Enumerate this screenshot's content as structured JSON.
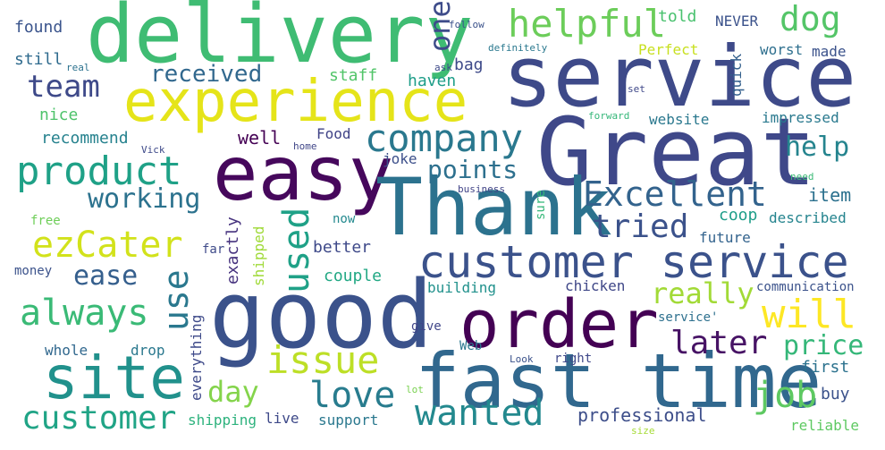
{
  "words": [
    {
      "text": "delivery",
      "color": "#3fbc73"
    },
    {
      "text": "service",
      "color": "#3e4a89"
    },
    {
      "text": "Great",
      "color": "#3f4889"
    },
    {
      "text": "experience",
      "color": "#e5e419"
    },
    {
      "text": "easy",
      "color": "#46085c"
    },
    {
      "text": "Thank",
      "color": "#2c728e"
    },
    {
      "text": "good",
      "color": "#3b528b"
    },
    {
      "text": "order",
      "color": "#440154"
    },
    {
      "text": "fast time",
      "color": "#31688e"
    },
    {
      "text": "site",
      "color": "#21918c"
    },
    {
      "text": "customer service",
      "color": "#3b528b"
    },
    {
      "text": "helpful",
      "color": "#6ccd5a"
    },
    {
      "text": "product",
      "color": "#1fa187"
    },
    {
      "text": "company",
      "color": "#2a788e"
    },
    {
      "text": "Excellent",
      "color": "#33638d"
    },
    {
      "text": "ezCater",
      "color": "#d2e21b"
    },
    {
      "text": "team",
      "color": "#3e4989"
    },
    {
      "text": "received",
      "color": "#31688e"
    },
    {
      "text": "working",
      "color": "#2c728e"
    },
    {
      "text": "always",
      "color": "#3aba76"
    },
    {
      "text": "use",
      "color": "#2a788e"
    },
    {
      "text": "used",
      "color": "#1fa187"
    },
    {
      "text": "issue",
      "color": "#bddf26"
    },
    {
      "text": "love",
      "color": "#287c8e"
    },
    {
      "text": "wanted",
      "color": "#23898e"
    },
    {
      "text": "customer",
      "color": "#20a486"
    },
    {
      "text": "will",
      "color": "#fde725"
    },
    {
      "text": "later",
      "color": "#471365"
    },
    {
      "text": "price",
      "color": "#35b779"
    },
    {
      "text": "job",
      "color": "#5ec962"
    },
    {
      "text": "day",
      "color": "#84d44b"
    },
    {
      "text": "tried",
      "color": "#3b528b"
    },
    {
      "text": "points",
      "color": "#2d708e"
    },
    {
      "text": "help",
      "color": "#25848e"
    },
    {
      "text": "really",
      "color": "#a2da37"
    },
    {
      "text": "ease",
      "color": "#355f8d"
    },
    {
      "text": "one",
      "color": "#3e4c8a"
    },
    {
      "text": "dog",
      "color": "#54c568"
    },
    {
      "text": "professional",
      "color": "#3d4e8a"
    },
    {
      "text": "found",
      "color": "#3a548c"
    },
    {
      "text": "still",
      "color": "#2f6b8e"
    },
    {
      "text": "nice",
      "color": "#4ec36b"
    },
    {
      "text": "recommend",
      "color": "#26828e"
    },
    {
      "text": "staff",
      "color": "#52c569"
    },
    {
      "text": "haven",
      "color": "#1f9e89"
    },
    {
      "text": "bag",
      "color": "#3e4a89"
    },
    {
      "text": "told",
      "color": "#48c16e"
    },
    {
      "text": "NEVER",
      "color": "#3b528b"
    },
    {
      "text": "Perfect",
      "color": "#c8e020"
    },
    {
      "text": "worst",
      "color": "#2e6f8e"
    },
    {
      "text": "made",
      "color": "#3b528b"
    },
    {
      "text": "quick",
      "color": "#34608d"
    },
    {
      "text": "website",
      "color": "#2a788e"
    },
    {
      "text": "impressed",
      "color": "#29798e"
    },
    {
      "text": "well",
      "color": "#440154"
    },
    {
      "text": "Food",
      "color": "#404387"
    },
    {
      "text": "joke",
      "color": "#3c4f8a"
    },
    {
      "text": "sure",
      "color": "#35b779"
    },
    {
      "text": "item",
      "color": "#2c718e"
    },
    {
      "text": "coop",
      "color": "#1f9e89"
    },
    {
      "text": "described",
      "color": "#25848e"
    },
    {
      "text": "exactly",
      "color": "#46327e"
    },
    {
      "text": "shipped",
      "color": "#a0da39"
    },
    {
      "text": "better",
      "color": "#3e4989"
    },
    {
      "text": "future",
      "color": "#33638d"
    },
    {
      "text": "couple",
      "color": "#22a884"
    },
    {
      "text": "building",
      "color": "#21918c"
    },
    {
      "text": "chicken",
      "color": "#3f4788"
    },
    {
      "text": "communication",
      "color": "#3b528b"
    },
    {
      "text": "service'",
      "color": "#2d708e"
    },
    {
      "text": "give",
      "color": "#404688"
    },
    {
      "text": "everything",
      "color": "#3e4a89"
    },
    {
      "text": "drop",
      "color": "#2a788e"
    },
    {
      "text": "whole",
      "color": "#31688e"
    },
    {
      "text": "Web",
      "color": "#2a788e"
    },
    {
      "text": "first",
      "color": "#2c728e"
    },
    {
      "text": "buy",
      "color": "#3b528b"
    },
    {
      "text": "reliable",
      "color": "#5ec962"
    },
    {
      "text": "shipping",
      "color": "#2db27d"
    },
    {
      "text": "live",
      "color": "#3e4989"
    },
    {
      "text": "support",
      "color": "#2a788e"
    },
    {
      "text": "money",
      "color": "#3b528b"
    },
    {
      "text": "free",
      "color": "#6ece58"
    },
    {
      "text": "far",
      "color": "#3e4a89"
    },
    {
      "text": "now",
      "color": "#23898e"
    },
    {
      "text": "right",
      "color": "#3f4889"
    },
    {
      "text": "follow",
      "color": "#3b528b"
    },
    {
      "text": "definitely",
      "color": "#2a788e"
    },
    {
      "text": "ask",
      "color": "#3e4a89"
    },
    {
      "text": "real",
      "color": "#2c728e"
    },
    {
      "text": "set",
      "color": "#3f4889"
    },
    {
      "text": "forward",
      "color": "#35b779"
    },
    {
      "text": "home",
      "color": "#404688"
    },
    {
      "text": "Vick",
      "color": "#3e4a89"
    },
    {
      "text": "need",
      "color": "#3aba76"
    },
    {
      "text": "business",
      "color": "#414487"
    },
    {
      "text": "Look",
      "color": "#3b528b"
    },
    {
      "text": "lot",
      "color": "#7ad151"
    },
    {
      "text": "size",
      "color": "#a5db36"
    }
  ]
}
